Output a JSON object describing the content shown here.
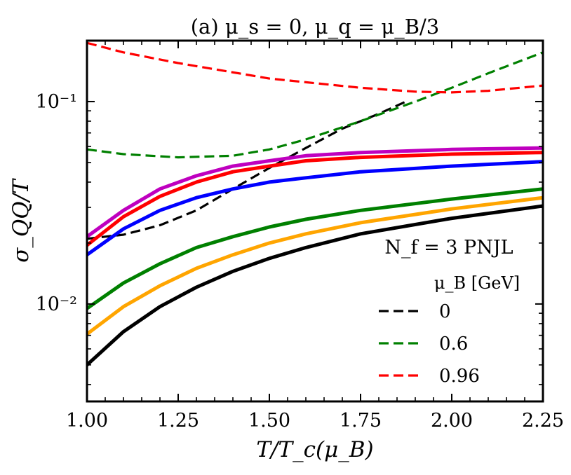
{
  "chart_data": {
    "type": "line",
    "title": "(a) μ_s = 0, μ_q = μ_B/3",
    "xlabel": "T/T_c(μ_B)",
    "ylabel": "σ_QQ/T",
    "x_scale": "linear",
    "y_scale": "log",
    "xlim": [
      1.0,
      2.25
    ],
    "ylim": [
      0.0033,
      0.2
    ],
    "x_ticks": [
      1.0,
      1.25,
      1.5,
      1.75,
      2.0,
      2.25
    ],
    "x_tick_labels": [
      "1.00",
      "1.25",
      "1.50",
      "1.75",
      "2.00",
      "2.25"
    ],
    "y_ticks": [
      0.01,
      0.1
    ],
    "y_tick_labels": [
      "10⁻²",
      "10⁻¹"
    ],
    "grid": false,
    "legend": {
      "placement": "lower-right",
      "title_line1": "N_f = 3 PNJL",
      "title_line2": "μ_B [GeV]",
      "entries": [
        "0",
        "0.6",
        "0.96"
      ]
    },
    "series": [
      {
        "name": "0",
        "style": "dashed",
        "color": "#000000",
        "x": [
          1.0,
          1.05,
          1.1,
          1.2,
          1.3,
          1.4,
          1.5,
          1.6,
          1.7,
          1.8,
          1.88
        ],
        "y": [
          0.021,
          0.0215,
          0.022,
          0.0245,
          0.029,
          0.037,
          0.047,
          0.059,
          0.0735,
          0.087,
          0.101
        ]
      },
      {
        "name": "0.6",
        "style": "dashed",
        "color": "#008000",
        "x": [
          1.0,
          1.1,
          1.25,
          1.4,
          1.5,
          1.6,
          1.75,
          1.9,
          2.0,
          2.1,
          2.25
        ],
        "y": [
          0.058,
          0.055,
          0.053,
          0.054,
          0.058,
          0.065,
          0.08,
          0.1,
          0.117,
          0.138,
          0.175
        ]
      },
      {
        "name": "0.96",
        "style": "dashed",
        "color": "#ff0000",
        "x": [
          1.0,
          1.1,
          1.25,
          1.5,
          1.75,
          1.9,
          2.0,
          2.1,
          2.25
        ],
        "y": [
          0.195,
          0.175,
          0.155,
          0.13,
          0.117,
          0.112,
          0.111,
          0.113,
          0.12
        ]
      },
      {
        "name": "",
        "style": "solid",
        "color": "#bf00bf",
        "x": [
          1.0,
          1.1,
          1.2,
          1.3,
          1.4,
          1.5,
          1.6,
          1.75,
          2.0,
          2.25
        ],
        "y": [
          0.0215,
          0.029,
          0.037,
          0.043,
          0.048,
          0.051,
          0.054,
          0.056,
          0.058,
          0.059
        ]
      },
      {
        "name": "",
        "style": "solid",
        "color": "#ff0000",
        "x": [
          1.0,
          1.1,
          1.2,
          1.3,
          1.4,
          1.5,
          1.6,
          1.75,
          2.0,
          2.25
        ],
        "y": [
          0.0195,
          0.027,
          0.034,
          0.04,
          0.045,
          0.048,
          0.051,
          0.053,
          0.055,
          0.056
        ]
      },
      {
        "name": "",
        "style": "solid",
        "color": "#0000ff",
        "x": [
          1.0,
          1.1,
          1.2,
          1.3,
          1.4,
          1.5,
          1.6,
          1.75,
          2.0,
          2.25
        ],
        "y": [
          0.0175,
          0.0235,
          0.029,
          0.0335,
          0.037,
          0.04,
          0.042,
          0.045,
          0.048,
          0.0505
        ]
      },
      {
        "name": "",
        "style": "solid",
        "color": "#008000",
        "x": [
          1.0,
          1.1,
          1.2,
          1.3,
          1.4,
          1.5,
          1.6,
          1.75,
          2.0,
          2.25
        ],
        "y": [
          0.0095,
          0.0127,
          0.0158,
          0.019,
          0.0215,
          0.024,
          0.0262,
          0.029,
          0.033,
          0.037
        ]
      },
      {
        "name": "",
        "style": "solid",
        "color": "#ffa500",
        "x": [
          1.0,
          1.1,
          1.2,
          1.3,
          1.4,
          1.5,
          1.6,
          1.75,
          2.0,
          2.25
        ],
        "y": [
          0.0071,
          0.0097,
          0.0123,
          0.015,
          0.0175,
          0.02,
          0.0222,
          0.0252,
          0.0295,
          0.0335
        ]
      },
      {
        "name": "",
        "style": "solid",
        "color": "#000000",
        "x": [
          1.0,
          1.1,
          1.2,
          1.3,
          1.4,
          1.5,
          1.6,
          1.75,
          2.0,
          2.25
        ],
        "y": [
          0.005,
          0.0073,
          0.0097,
          0.0121,
          0.0145,
          0.0168,
          0.019,
          0.0222,
          0.0265,
          0.0305
        ]
      }
    ]
  }
}
